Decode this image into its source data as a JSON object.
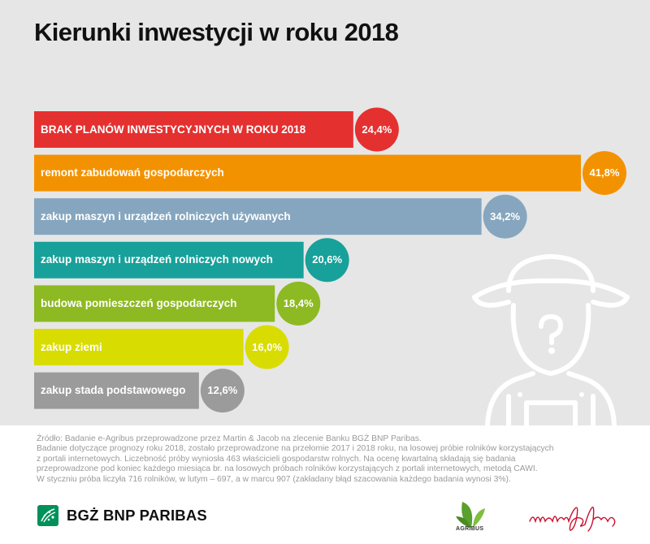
{
  "title": "Kierunki inwestycji w roku 2018",
  "chart_data": {
    "type": "bar",
    "orientation": "horizontal",
    "categories": [
      "BRAK PLANÓW INWESTYCYJNYCH W ROKU 2018",
      "remont zabudowań gospodarczych",
      "zakup maszyn i urządzeń rolniczych używanych",
      "zakup maszyn i urządzeń rolniczych nowych",
      "budowa pomieszczeń gospodarczych",
      "zakup ziemi",
      "zakup stada podstawowego"
    ],
    "values": [
      24.4,
      41.8,
      34.2,
      20.6,
      18.4,
      16.0,
      12.6
    ],
    "value_labels": [
      "24,4%",
      "41,8%",
      "34,2%",
      "20,6%",
      "18,4%",
      "16,0%",
      "12,6%"
    ],
    "colors": [
      "#e53030",
      "#f39200",
      "#86a6bf",
      "#17a19a",
      "#8dba22",
      "#d9dc00",
      "#9b9b9b"
    ],
    "unit": "%"
  },
  "footer": {
    "lines": [
      "Źródło: Badanie e-Agribus przeprowadzone przez Martin & Jacob na zlecenie Banku BGŻ BNP Paribas.",
      "Badanie dotyczące prognozy roku 2018, zostało przeprowadzone na przełomie 2017 i 2018 roku, na losowej próbie rolników korzystających",
      "z portali internetowych. Liczebność próby wyniosła 463 właścicieli gospodarstw rolnych. Na ocenę kwartalną składają się badania",
      "przeprowadzone pod koniec każdego miesiąca br. na losowych próbach rolników korzystających z portali internetowych, metodą CAWI.",
      "W styczniu próba liczyła 716 rolników, w lutym – 697, a w marcu 907 (zakładany błąd szacowania każdego badania wynosi 3%)."
    ]
  },
  "logos": {
    "bgz": "BGŻ BNP PARIBAS",
    "agribus": "AGRIBUS",
    "martin_jacob": "martin&jacob"
  },
  "colors": {
    "background_panel": "#e6e6e6",
    "bgz_green": "#00915a",
    "mj_red": "#c8102e"
  }
}
